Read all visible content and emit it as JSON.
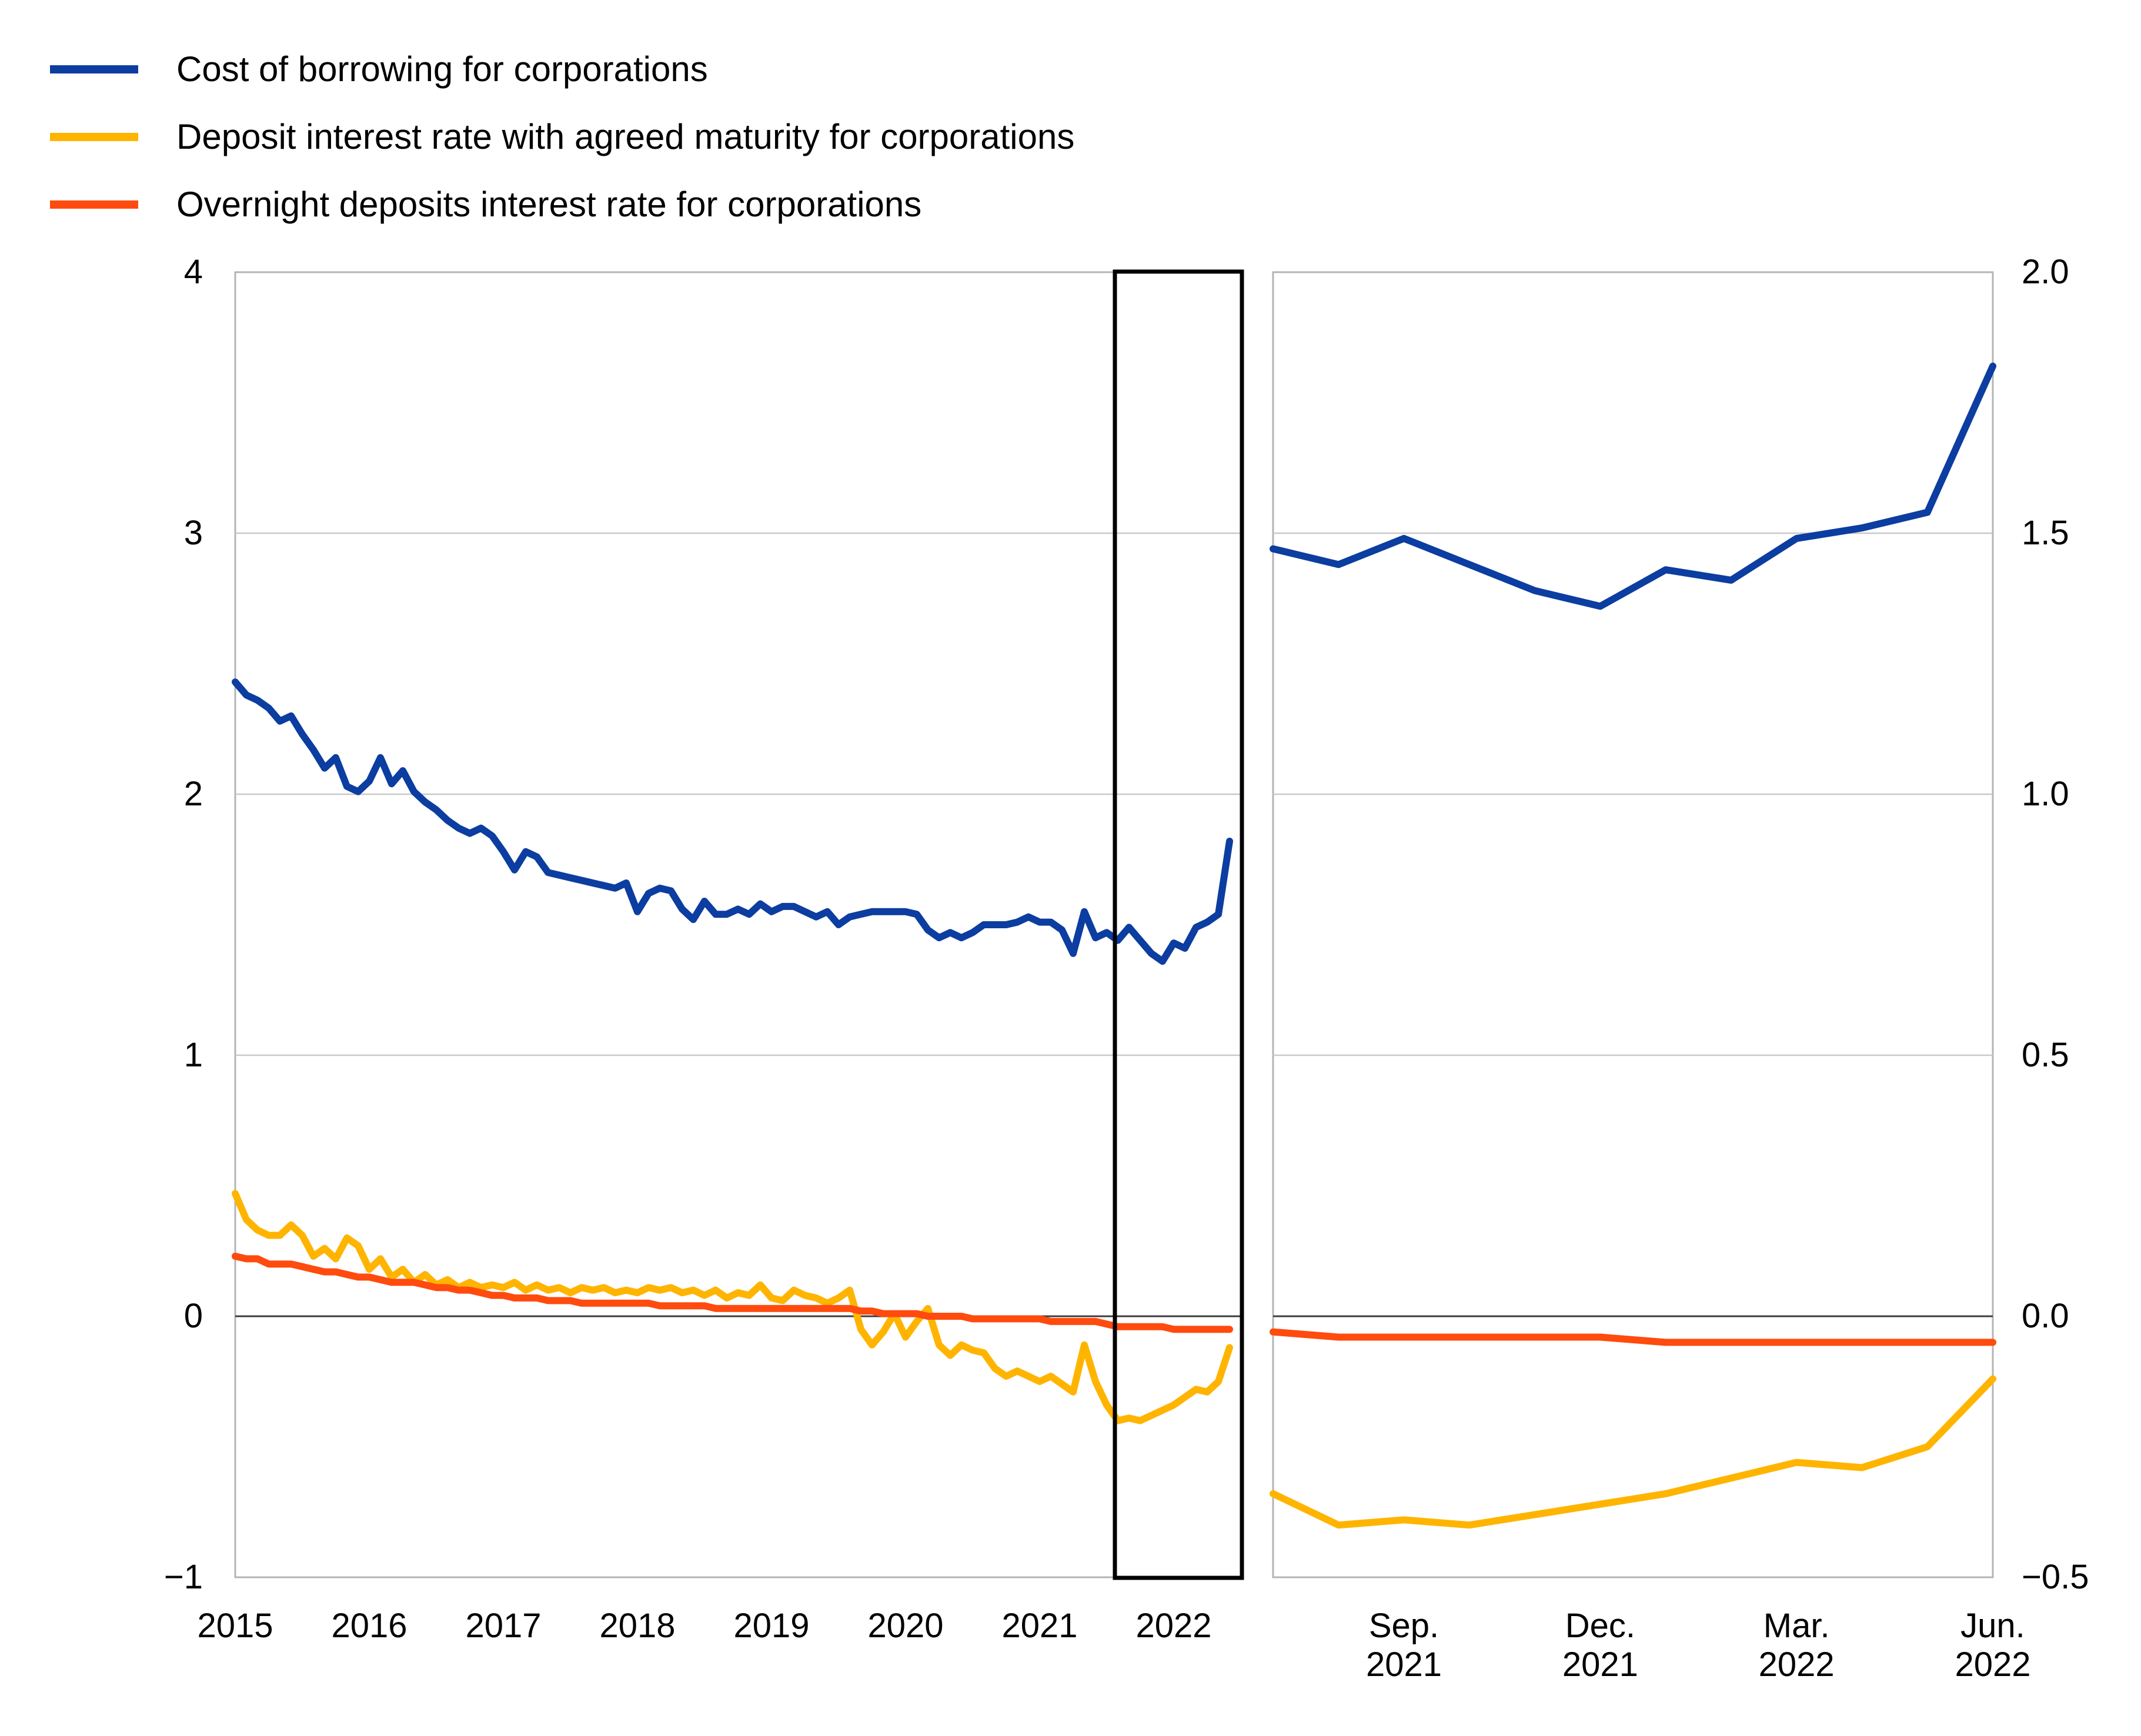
{
  "legend": {
    "items": [
      {
        "label": "Cost of borrowing for corporations",
        "color": "#0c3da0"
      },
      {
        "label": "Deposit interest rate with agreed maturity for corporations",
        "color": "#ffb400"
      },
      {
        "label": "Overnight deposits interest rate for corporations",
        "color": "#ff4b0e"
      }
    ]
  },
  "colors": {
    "blue": "#0c3da0",
    "yellow": "#ffb400",
    "orange_red": "#ff4b0e",
    "gridline": "#c9c9c9",
    "zero_line": "#3c3c3c",
    "panel_border": "#b4b4b4",
    "highlight_box": "#000000"
  },
  "chart_data": [
    {
      "id": "main",
      "type": "line",
      "title": "",
      "freq": "monthly",
      "x_range": [
        "2015-01",
        "2022-06"
      ],
      "x_tick_labels": [
        "2015",
        "2016",
        "2017",
        "2018",
        "2019",
        "2020",
        "2021",
        "2022"
      ],
      "x_tick_month_index": [
        0,
        12,
        24,
        36,
        48,
        60,
        72,
        84
      ],
      "ylim": [
        -1,
        4
      ],
      "y_ticks": [
        4,
        3,
        2,
        1,
        0,
        -1
      ],
      "y_tick_labels": [
        "4",
        "3",
        "2",
        "1",
        "0",
        "−1"
      ],
      "grid": "horizontal",
      "zero_line": true,
      "legend_position": "top-left",
      "highlight_box": {
        "from": "2021-07",
        "to": "2022-06"
      },
      "series": [
        {
          "name": "Cost of borrowing for corporations",
          "color": "#0c3da0",
          "values": [
            2.43,
            2.38,
            2.36,
            2.33,
            2.28,
            2.3,
            2.23,
            2.17,
            2.1,
            2.14,
            2.03,
            2.01,
            2.05,
            2.14,
            2.04,
            2.09,
            2.01,
            1.97,
            1.94,
            1.9,
            1.87,
            1.85,
            1.87,
            1.84,
            1.78,
            1.71,
            1.78,
            1.76,
            1.7,
            1.69,
            1.68,
            1.67,
            1.66,
            1.65,
            1.64,
            1.66,
            1.55,
            1.62,
            1.64,
            1.63,
            1.56,
            1.52,
            1.59,
            1.54,
            1.54,
            1.56,
            1.54,
            1.58,
            1.55,
            1.57,
            1.57,
            1.55,
            1.53,
            1.55,
            1.5,
            1.53,
            1.54,
            1.55,
            1.55,
            1.55,
            1.55,
            1.54,
            1.48,
            1.45,
            1.47,
            1.45,
            1.47,
            1.5,
            1.5,
            1.5,
            1.51,
            1.53,
            1.51,
            1.51,
            1.48,
            1.39,
            1.55,
            1.45,
            1.47,
            1.44,
            1.49,
            1.44,
            1.39,
            1.36,
            1.43,
            1.41,
            1.49,
            1.51,
            1.54,
            1.82
          ]
        },
        {
          "name": "Deposit interest rate with agreed maturity for corporations",
          "color": "#ffb400",
          "values": [
            0.47,
            0.37,
            0.33,
            0.31,
            0.31,
            0.35,
            0.31,
            0.23,
            0.26,
            0.22,
            0.3,
            0.27,
            0.18,
            0.22,
            0.15,
            0.18,
            0.13,
            0.16,
            0.12,
            0.14,
            0.11,
            0.13,
            0.11,
            0.12,
            0.11,
            0.13,
            0.1,
            0.12,
            0.1,
            0.11,
            0.09,
            0.11,
            0.1,
            0.11,
            0.09,
            0.1,
            0.09,
            0.11,
            0.1,
            0.11,
            0.09,
            0.1,
            0.08,
            0.1,
            0.07,
            0.09,
            0.08,
            0.12,
            0.07,
            0.06,
            0.1,
            0.08,
            0.07,
            0.05,
            0.07,
            0.1,
            -0.05,
            -0.11,
            -0.06,
            0.01,
            -0.08,
            -0.02,
            0.03,
            -0.11,
            -0.15,
            -0.11,
            -0.13,
            -0.14,
            -0.2,
            -0.23,
            -0.21,
            -0.23,
            -0.25,
            -0.23,
            -0.26,
            -0.29,
            -0.11,
            -0.25,
            -0.34,
            -0.4,
            -0.39,
            -0.4,
            -0.38,
            -0.36,
            -0.34,
            -0.31,
            -0.28,
            -0.29,
            -0.25,
            -0.12
          ]
        },
        {
          "name": "Overnight deposits interest rate for corporations",
          "color": "#ff4b0e",
          "values": [
            0.23,
            0.22,
            0.22,
            0.2,
            0.2,
            0.2,
            0.19,
            0.18,
            0.17,
            0.17,
            0.16,
            0.15,
            0.15,
            0.14,
            0.13,
            0.13,
            0.13,
            0.12,
            0.11,
            0.11,
            0.1,
            0.1,
            0.09,
            0.08,
            0.08,
            0.07,
            0.07,
            0.07,
            0.06,
            0.06,
            0.06,
            0.05,
            0.05,
            0.05,
            0.05,
            0.05,
            0.05,
            0.05,
            0.04,
            0.04,
            0.04,
            0.04,
            0.04,
            0.03,
            0.03,
            0.03,
            0.03,
            0.03,
            0.03,
            0.03,
            0.03,
            0.03,
            0.03,
            0.03,
            0.03,
            0.03,
            0.02,
            0.02,
            0.01,
            0.01,
            0.01,
            0.01,
            0.0,
            0.0,
            0.0,
            0.0,
            -0.01,
            -0.01,
            -0.01,
            -0.01,
            -0.01,
            -0.01,
            -0.01,
            -0.02,
            -0.02,
            -0.02,
            -0.02,
            -0.02,
            -0.03,
            -0.04,
            -0.04,
            -0.04,
            -0.04,
            -0.04,
            -0.05,
            -0.05,
            -0.05,
            -0.05,
            -0.05,
            -0.05
          ]
        }
      ]
    },
    {
      "id": "zoom",
      "type": "line",
      "title": "",
      "freq": "monthly",
      "x_range": [
        "2021-07",
        "2022-06"
      ],
      "x_tick_labels": [
        "Sep. 2021",
        "Dec. 2021",
        "Mar. 2022",
        "Jun. 2022"
      ],
      "x_tick_month_index": [
        2,
        5,
        8,
        11
      ],
      "ylim": [
        -0.5,
        2.0
      ],
      "y_ticks": [
        2.0,
        1.5,
        1.0,
        0.5,
        0.0,
        -0.5
      ],
      "y_tick_labels": [
        "2.0",
        "1.5",
        "1.0",
        "0.5",
        "0.0",
        "−0.5"
      ],
      "grid": "horizontal",
      "zero_line": true,
      "series": [
        {
          "name": "Cost of borrowing for corporations",
          "color": "#0c3da0",
          "values": [
            1.47,
            1.44,
            1.49,
            1.44,
            1.39,
            1.36,
            1.43,
            1.41,
            1.49,
            1.51,
            1.54,
            1.82
          ]
        },
        {
          "name": "Deposit interest rate with agreed maturity for corporations",
          "color": "#ffb400",
          "values": [
            -0.34,
            -0.4,
            -0.39,
            -0.4,
            -0.38,
            -0.36,
            -0.34,
            -0.31,
            -0.28,
            -0.29,
            -0.25,
            -0.12
          ]
        },
        {
          "name": "Overnight deposits interest rate for corporations",
          "color": "#ff4b0e",
          "values": [
            -0.03,
            -0.04,
            -0.04,
            -0.04,
            -0.04,
            -0.04,
            -0.05,
            -0.05,
            -0.05,
            -0.05,
            -0.05,
            -0.05
          ]
        }
      ]
    }
  ]
}
